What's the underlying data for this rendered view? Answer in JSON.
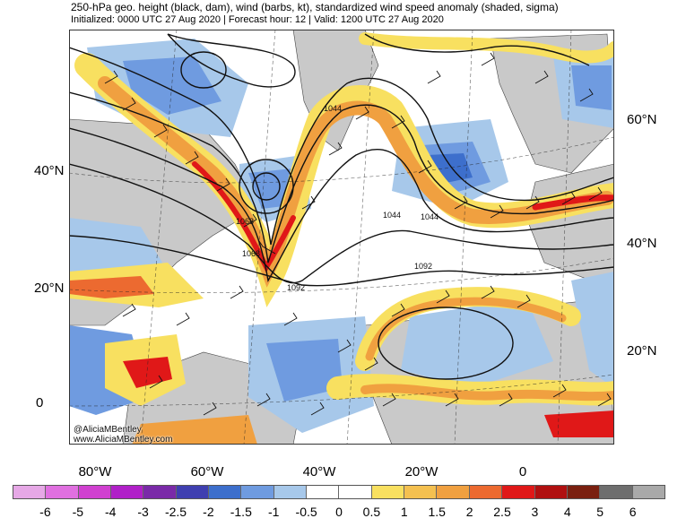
{
  "header": {
    "title": "250-hPa geo. height (black, dam), wind (barbs, kt), standardized wind speed anomaly (shaded, sigma)",
    "subtitle": "Initialized: 0000 UTC 27 Aug 2020 | Forecast hour: 12 | Valid: 1200 UTC 27 Aug 2020"
  },
  "left_lat_labels": [
    "40°N",
    "20°N",
    "0"
  ],
  "right_lat_labels": [
    "60°N",
    "40°N",
    "20°N"
  ],
  "lon_labels": [
    "80°W",
    "60°W",
    "40°W",
    "20°W",
    "0"
  ],
  "contour_labels": [
    "1044",
    "1044",
    "1068",
    "1068",
    "1044",
    "1092",
    "1092"
  ],
  "credit": [
    "@AliciaMBentley",
    "www.AliciaMBentley.com"
  ],
  "colorbar": {
    "ticks": [
      "-6",
      "-5",
      "-4",
      "-3",
      "-2.5",
      "-2",
      "-1.5",
      "-1",
      "-0.5",
      "0",
      "0.5",
      "1",
      "1.5",
      "2",
      "2.5",
      "3",
      "4",
      "5",
      "6"
    ],
    "colors": [
      "#e6a8e6",
      "#e070e0",
      "#d040d0",
      "#b020c8",
      "#7a2aa8",
      "#3f3fb0",
      "#3d6fcc",
      "#6f9be0",
      "#a7c8ea",
      "#ffffff",
      "#ffffff",
      "#f8e060",
      "#f4c050",
      "#f0a040",
      "#ec6a30",
      "#e01818",
      "#b01010",
      "#7a2010",
      "#6e6e6e",
      "#a9a9a9"
    ]
  },
  "colors": {
    "land": "#c9c9c9",
    "positive_weak": "#f8e060",
    "positive_mid": "#f0a040",
    "positive_strong": "#e01818",
    "negative_weak": "#a7c8ea",
    "negative_mid": "#6f9be0",
    "negative_strong": "#3d6fcc"
  }
}
